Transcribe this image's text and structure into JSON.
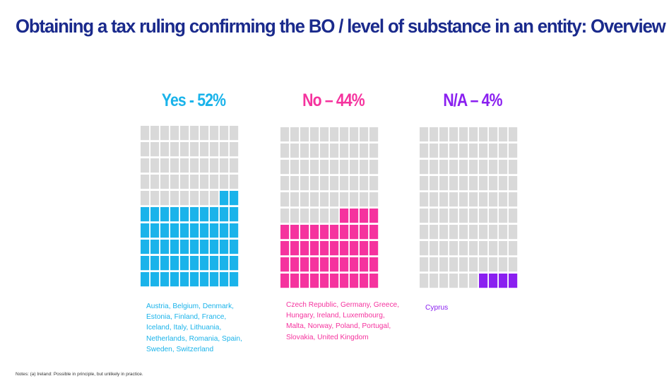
{
  "title": "Obtaining a tax ruling confirming the BO /  level of substance in an entity: Overview",
  "notes": "Notes: (a) Ireland: Possible in principle, but unlikely in practice.",
  "empty_color": "#d9d9d9",
  "chart_data": {
    "type": "waffle",
    "cells_per_chart": 100,
    "categories": [
      "Yes",
      "No",
      "N/A"
    ],
    "values": [
      52,
      44,
      4
    ],
    "series": [
      {
        "name": "Yes",
        "heading": "Yes - 52%",
        "value": 52,
        "color": "#1ab3ea",
        "countries": "Austria, Belgium, Denmark, Estonia, Finland, France, Iceland, Italy, Lithuania, Netherlands, Romania, Spain, Sweden, Switzerland"
      },
      {
        "name": "No",
        "heading": "No – 44%",
        "value": 44,
        "color": "#f5339e",
        "countries": "Czech Republic, Germany, Greece, Hungary, Ireland, Luxembourg, Malta, Norway, Poland, Portugal, Slovakia, United Kingdom"
      },
      {
        "name": "N/A",
        "heading": "N/A – 4%",
        "value": 4,
        "color": "#8a1ff0",
        "countries": "Cyprus"
      }
    ]
  }
}
